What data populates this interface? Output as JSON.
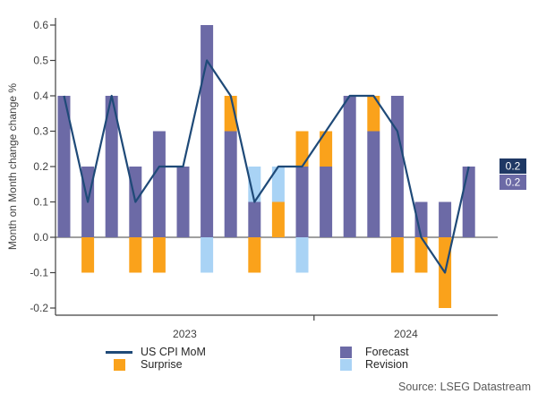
{
  "chart_data": {
    "type": "bar+line combo",
    "title": "",
    "ylabel": "Month on Month change change %",
    "ylim": [
      -0.2,
      0.6
    ],
    "y_tick_labels": [
      "0.6",
      "0.5",
      "0.4",
      "0.3",
      "0.2",
      "0.1",
      "0.0",
      "-0.1",
      "-0.2"
    ],
    "grid": "off",
    "legend_position": "bottom",
    "year_groups": [
      {
        "label": "2023",
        "months": 11
      },
      {
        "label": "2024",
        "months": 7
      }
    ],
    "stacking_note": "positive surprise/revision stack on top of forecast; negative surprise/revision drawn below zero",
    "series": [
      {
        "name": "Forecast",
        "type": "bar",
        "color": "#6C6AA6",
        "values": [
          0.4,
          0.2,
          0.4,
          0.2,
          0.3,
          0.2,
          0.6,
          0.3,
          0.1,
          0.0,
          0.2,
          0.2,
          0.4,
          0.3,
          0.4,
          0.1,
          0.1,
          0.2
        ]
      },
      {
        "name": "Surprise",
        "type": "bar",
        "color": "#FAA21B",
        "values": [
          0,
          -0.1,
          0,
          -0.1,
          -0.1,
          0,
          0,
          0.1,
          -0.1,
          0.1,
          0.1,
          0.1,
          0,
          0.1,
          -0.1,
          -0.1,
          -0.2,
          0
        ]
      },
      {
        "name": "Revision",
        "type": "bar",
        "color": "#A9D3F5",
        "values": [
          0,
          0,
          0,
          0,
          0,
          0,
          -0.1,
          0,
          0.1,
          0.1,
          -0.1,
          0,
          0,
          0,
          0,
          0,
          0,
          0
        ]
      },
      {
        "name": "US CPI MoM",
        "type": "line",
        "color": "#1F4A78",
        "values": [
          0.4,
          0.1,
          0.4,
          0.1,
          0.2,
          0.2,
          0.5,
          0.4,
          0.1,
          0.2,
          0.2,
          0.3,
          0.4,
          0.4,
          0.3,
          0.0,
          -0.1,
          0.2
        ]
      }
    ],
    "end_labels": [
      {
        "text": "0.2",
        "bg": "#1F3864",
        "fg": "#FFFFFF",
        "for": "US CPI MoM"
      },
      {
        "text": "0.2",
        "bg": "#6C6AA6",
        "fg": "#FFFFFF",
        "for": "Forecast"
      }
    ]
  },
  "colors": {
    "axis": "#404040",
    "zero_line": "#808080",
    "tick_text": "#404040",
    "year_text": "#404040"
  },
  "source": "Source: LSEG Datastream"
}
